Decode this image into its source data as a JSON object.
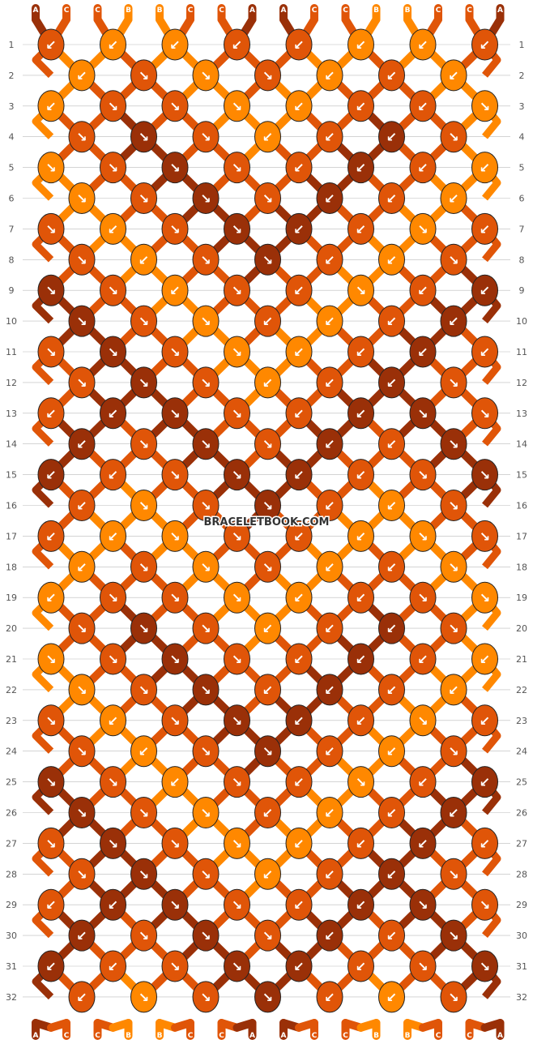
{
  "watermark": "BRACELETBOOK.COM",
  "colors": {
    "A": "#9a3008",
    "B": "#ff8800",
    "C": "#e05508",
    "outline": "#222222",
    "guide": "#bbbbbb",
    "background": "#ffffff"
  },
  "strands_top": [
    "A",
    "C",
    "C",
    "B",
    "B",
    "C",
    "C",
    "A",
    "A",
    "C",
    "C",
    "B",
    "B",
    "C",
    "C",
    "A"
  ],
  "strands_bottom": [
    "A",
    "C",
    "C",
    "B",
    "B",
    "C",
    "C",
    "A",
    "A",
    "C",
    "C",
    "B",
    "B",
    "C",
    "C",
    "A"
  ],
  "row_labels_left": [
    "1",
    "2",
    "3",
    "4",
    "5",
    "6",
    "7",
    "8",
    "9",
    "10",
    "11",
    "12",
    "13",
    "14",
    "15",
    "16",
    "17",
    "18",
    "19",
    "20",
    "21",
    "22",
    "23",
    "24",
    "25",
    "26",
    "27",
    "28",
    "29",
    "30",
    "31",
    "32"
  ],
  "row_labels_right": [
    "1",
    "2",
    "3",
    "4",
    "5",
    "6",
    "7",
    "8",
    "9",
    "10",
    "11",
    "12",
    "13",
    "14",
    "15",
    "16",
    "17",
    "18",
    "19",
    "20",
    "21",
    "22",
    "23",
    "24",
    "25",
    "26",
    "27",
    "28",
    "29",
    "30",
    "31",
    "32"
  ],
  "knots": [
    [
      "C",
      "B",
      "B",
      "C",
      "C",
      "B",
      "B",
      "C"
    ],
    [
      "B",
      "C",
      "B",
      "C",
      "B",
      "C",
      "B"
    ],
    [
      "B",
      "C",
      "C",
      "B",
      "B",
      "C",
      "C",
      "B"
    ],
    [
      "C",
      "A",
      "C",
      "B",
      "C",
      "A",
      "C"
    ],
    [
      "B",
      "C",
      "A",
      "C",
      "C",
      "A",
      "C",
      "B"
    ],
    [
      "B",
      "C",
      "A",
      "C",
      "A",
      "C",
      "B"
    ],
    [
      "C",
      "B",
      "C",
      "A",
      "A",
      "C",
      "B",
      "C"
    ],
    [
      "C",
      "B",
      "C",
      "A",
      "C",
      "B",
      "C"
    ],
    [
      "A",
      "C",
      "B",
      "C",
      "C",
      "B",
      "C",
      "A"
    ],
    [
      "A",
      "C",
      "B",
      "C",
      "B",
      "C",
      "A"
    ],
    [
      "C",
      "A",
      "C",
      "B",
      "B",
      "C",
      "A",
      "C"
    ],
    [
      "C",
      "A",
      "C",
      "B",
      "C",
      "A",
      "C"
    ],
    [
      "C",
      "A",
      "A",
      "C",
      "C",
      "A",
      "A",
      "C"
    ],
    [
      "A",
      "C",
      "A",
      "C",
      "A",
      "C",
      "A"
    ],
    [
      "A",
      "C",
      "C",
      "A",
      "A",
      "C",
      "C",
      "A"
    ],
    [
      "C",
      "B",
      "C",
      "A",
      "C",
      "B",
      "C"
    ],
    [
      "C",
      "B",
      "B",
      "C",
      "C",
      "B",
      "B",
      "C"
    ],
    [
      "B",
      "C",
      "B",
      "C",
      "B",
      "C",
      "B"
    ],
    [
      "B",
      "C",
      "C",
      "B",
      "B",
      "C",
      "C",
      "B"
    ],
    [
      "C",
      "A",
      "C",
      "B",
      "C",
      "A",
      "C"
    ],
    [
      "B",
      "C",
      "A",
      "C",
      "C",
      "A",
      "C",
      "B"
    ],
    [
      "B",
      "C",
      "A",
      "C",
      "A",
      "C",
      "B"
    ],
    [
      "C",
      "B",
      "C",
      "A",
      "A",
      "C",
      "B",
      "C"
    ],
    [
      "C",
      "B",
      "C",
      "A",
      "C",
      "B",
      "C"
    ],
    [
      "A",
      "C",
      "B",
      "C",
      "C",
      "B",
      "C",
      "A"
    ],
    [
      "A",
      "C",
      "B",
      "C",
      "B",
      "C",
      "A"
    ],
    [
      "C",
      "A",
      "C",
      "B",
      "B",
      "C",
      "A",
      "C"
    ],
    [
      "C",
      "A",
      "C",
      "B",
      "C",
      "A",
      "C"
    ],
    [
      "C",
      "A",
      "A",
      "C",
      "C",
      "A",
      "A",
      "C"
    ],
    [
      "A",
      "C",
      "A",
      "C",
      "A",
      "C",
      "A"
    ],
    [
      "A",
      "C",
      "C",
      "A",
      "A",
      "C",
      "C",
      "A"
    ],
    [
      "C",
      "B",
      "C",
      "A",
      "C",
      "B",
      "C"
    ]
  ],
  "knot_directions": [
    [
      "↙",
      "↙",
      "↙",
      "↙",
      "↙",
      "↙",
      "↙",
      "↙"
    ],
    [
      "↙",
      "↘",
      "↘",
      "↘",
      "↙",
      "↙",
      "↙"
    ],
    [
      "↙",
      "↘",
      "↘",
      "↘",
      "↙",
      "↙",
      "↙",
      "↘"
    ],
    [
      "↘",
      "↘",
      "↘",
      "↙",
      "↙",
      "↙",
      "↘"
    ],
    [
      "↘",
      "↘",
      "↘",
      "↘",
      "↙",
      "↙",
      "↙",
      "↙"
    ],
    [
      "↘",
      "↘",
      "↘",
      "↘",
      "↙",
      "↙",
      "↙"
    ],
    [
      "↘",
      "↙",
      "↘",
      "↘",
      "↙",
      "↙",
      "↘",
      "↙"
    ],
    [
      "↘",
      "↙",
      "↘",
      "↘",
      "↙",
      "↙",
      "↘"
    ],
    [
      "↘",
      "↘",
      "↙",
      "↘",
      "↙",
      "↘",
      "↙",
      "↙"
    ],
    [
      "↘",
      "↘",
      "↘",
      "↙",
      "↙",
      "↙",
      "↙"
    ],
    [
      "↘",
      "↘",
      "↘",
      "↘",
      "↙",
      "↙",
      "↙",
      "↙"
    ],
    [
      "↘",
      "↘",
      "↘",
      "↙",
      "↙",
      "↙",
      "↘"
    ],
    [
      "↙",
      "↙",
      "↘",
      "↘",
      "↙",
      "↙",
      "↘",
      "↘"
    ],
    [
      "↙",
      "↘",
      "↘",
      "↘",
      "↙",
      "↙",
      "↘"
    ],
    [
      "↙",
      "↙",
      "↘",
      "↘",
      "↙",
      "↙",
      "↘",
      "↘"
    ],
    [
      "↙",
      "↘",
      "↘",
      "↘",
      "↙",
      "↙",
      "↘"
    ],
    [
      "↙",
      "↙",
      "↘",
      "↘",
      "↙",
      "↙",
      "↘",
      "↘"
    ],
    [
      "↙",
      "↘",
      "↘",
      "↘",
      "↙",
      "↙",
      "↘"
    ],
    [
      "↙",
      "↘",
      "↘",
      "↘",
      "↙",
      "↙",
      "↘",
      "↘"
    ],
    [
      "↘",
      "↘",
      "↘",
      "↙",
      "↙",
      "↙",
      "↘"
    ],
    [
      "↘",
      "↘",
      "↘",
      "↘",
      "↙",
      "↙",
      "↙",
      "↙"
    ],
    [
      "↘",
      "↘",
      "↘",
      "↙",
      "↙",
      "↙",
      "↙"
    ],
    [
      "↘",
      "↙",
      "↘",
      "↘",
      "↙",
      "↙",
      "↘",
      "↙"
    ],
    [
      "↘",
      "↙",
      "↘",
      "↘",
      "↙",
      "↙",
      "↘"
    ],
    [
      "↘",
      "↘",
      "↙",
      "↘",
      "↙",
      "↘",
      "↙",
      "↙"
    ],
    [
      "↘",
      "↘",
      "↘",
      "↙",
      "↙",
      "↙",
      "↙"
    ],
    [
      "↘",
      "↘",
      "↘",
      "↘",
      "↙",
      "↙",
      "↙",
      "↙"
    ],
    [
      "↘",
      "↘",
      "↘",
      "↙",
      "↙",
      "↙",
      "↘"
    ],
    [
      "↙",
      "↙",
      "↘",
      "↘",
      "↙",
      "↙",
      "↘",
      "↘"
    ],
    [
      "↙",
      "↘",
      "↘",
      "↘",
      "↙",
      "↙",
      "↘"
    ],
    [
      "↙",
      "↙",
      "↘",
      "↘",
      "↙",
      "↙",
      "↘",
      "↘"
    ],
    [
      "↙",
      "↘",
      "↘",
      "↘",
      "↙",
      "↙",
      "↘"
    ]
  ]
}
